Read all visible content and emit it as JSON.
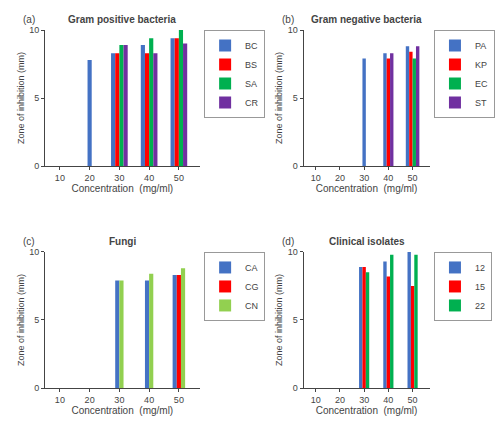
{
  "chart_data": [
    {
      "type": "bar",
      "title": "Gram positive bacteria",
      "annotations": [
        "(a)"
      ],
      "x": [
        10,
        20,
        30,
        40,
        50
      ],
      "series": [
        {
          "name": "BC",
          "color": "#4472C4",
          "values": [
            null,
            7.8,
            8.3,
            8.9,
            9.4
          ]
        },
        {
          "name": "BS",
          "color": "#FF0000",
          "values": [
            null,
            null,
            8.3,
            8.3,
            9.4
          ]
        },
        {
          "name": "SA",
          "color": "#00B050",
          "values": [
            null,
            null,
            8.9,
            9.4,
            10.0
          ]
        },
        {
          "name": "CR",
          "color": "#7030A0",
          "values": [
            null,
            null,
            8.9,
            8.3,
            9.0
          ]
        }
      ],
      "xlabel": "Concentration  (mg/ml)",
      "ylabel": "Zone of inhibition (mm)",
      "xlim": [
        5,
        57
      ],
      "ylim": [
        0,
        10
      ],
      "xticks": [
        10,
        20,
        30,
        40,
        50
      ],
      "yticks": [
        0,
        5,
        10
      ],
      "grid": false,
      "legend": "right"
    },
    {
      "type": "bar",
      "title": "Gram negative bacteria",
      "annotations": [
        "(b)"
      ],
      "x": [
        10,
        20,
        30,
        40,
        50
      ],
      "series": [
        {
          "name": "PA",
          "color": "#4472C4",
          "values": [
            null,
            null,
            7.9,
            8.3,
            8.8
          ]
        },
        {
          "name": "KP",
          "color": "#FF0000",
          "values": [
            null,
            null,
            null,
            7.9,
            8.4
          ]
        },
        {
          "name": "EC",
          "color": "#00B050",
          "values": [
            null,
            null,
            null,
            null,
            7.9
          ]
        },
        {
          "name": "ST",
          "color": "#7030A0",
          "values": [
            null,
            null,
            null,
            8.3,
            8.8
          ]
        }
      ],
      "xlabel": "Concentration  (mg/ml)",
      "ylabel": "Zone of inhibition (mm)",
      "xlim": [
        5,
        57
      ],
      "ylim": [
        0,
        10
      ],
      "xticks": [
        10,
        20,
        30,
        40,
        50
      ],
      "yticks": [
        0,
        5,
        10
      ],
      "grid": false,
      "legend": "right"
    },
    {
      "type": "bar",
      "title": "Fungi",
      "annotations": [
        "(c)"
      ],
      "x": [
        10,
        20,
        30,
        40,
        50
      ],
      "series": [
        {
          "name": "CA",
          "color": "#4472C4",
          "values": [
            null,
            null,
            7.9,
            7.9,
            8.3
          ]
        },
        {
          "name": "CG",
          "color": "#FF0000",
          "values": [
            null,
            null,
            null,
            null,
            8.3
          ]
        },
        {
          "name": "CN",
          "color": "#92D050",
          "values": [
            null,
            null,
            7.9,
            8.4,
            8.8
          ]
        }
      ],
      "xlabel": "Concentration  (mg/ml)",
      "ylabel": "Zone of inhibition (mm)",
      "xlim": [
        5,
        57
      ],
      "ylim": [
        0,
        10
      ],
      "xticks": [
        10,
        20,
        30,
        40,
        50
      ],
      "yticks": [
        0,
        5,
        10
      ],
      "grid": false,
      "legend": "right"
    },
    {
      "type": "bar",
      "title": "Clinical isolates",
      "annotations": [
        "(d)"
      ],
      "x": [
        10,
        20,
        30,
        40,
        50
      ],
      "series": [
        {
          "name": "12",
          "color": "#4472C4",
          "values": [
            null,
            null,
            8.9,
            9.3,
            10.0
          ]
        },
        {
          "name": "15",
          "color": "#FF0000",
          "values": [
            null,
            null,
            8.9,
            8.2,
            7.5
          ]
        },
        {
          "name": "22",
          "color": "#00B050",
          "values": [
            null,
            null,
            8.5,
            9.8,
            9.8
          ]
        }
      ],
      "xlabel": "Concentration  (mg/ml)",
      "ylabel": "Zone of inhibition (mm)",
      "xlim": [
        5,
        57
      ],
      "ylim": [
        0,
        10
      ],
      "xticks": [
        10,
        20,
        30,
        40,
        50
      ],
      "yticks": [
        0,
        5,
        10
      ],
      "grid": false,
      "legend": "right"
    }
  ]
}
